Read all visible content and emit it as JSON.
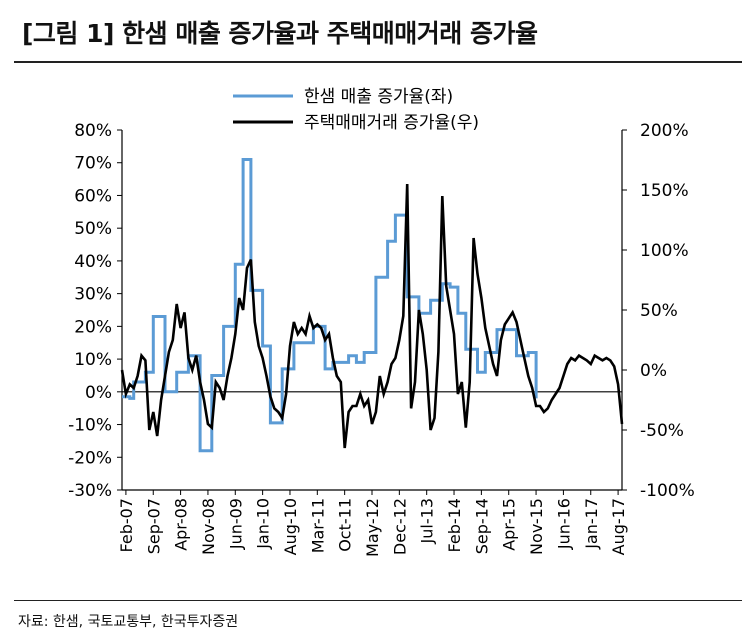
{
  "figure": {
    "title": "[그림 1] 한샘 매출 증가율과 주택매매거래 증가율",
    "source": "자료: 한샘, 국토교통부, 한국투자증권"
  },
  "chart_data": {
    "type": "line",
    "title": "[그림 1] 한샘 매출 증가율과 주택매매거래 증가율",
    "legend_position": "top-center",
    "grid": false,
    "x_tick_labels": [
      "Feb-07",
      "Sep-07",
      "Apr-08",
      "Nov-08",
      "Jun-09",
      "Jan-10",
      "Aug-10",
      "Mar-11",
      "Oct-11",
      "May-12",
      "Dec-12",
      "Jul-13",
      "Feb-14",
      "Sep-14",
      "Apr-15",
      "Nov-15",
      "Jun-16",
      "Jan-17",
      "Aug-17"
    ],
    "y_left": {
      "min": -30,
      "max": 80,
      "step": 10,
      "unit": "%",
      "tick_labels": [
        "-30%",
        "-20%",
        "-10%",
        "0%",
        "10%",
        "20%",
        "30%",
        "40%",
        "50%",
        "60%",
        "70%",
        "80%"
      ]
    },
    "y_right": {
      "min": -100,
      "max": 200,
      "step": 50,
      "unit": "%",
      "tick_labels": [
        "-100%",
        "-50%",
        "0%",
        "50%",
        "100%",
        "150%",
        "200%"
      ]
    },
    "series": [
      {
        "name": "한샘 매출 증가율(좌)",
        "axis": "left",
        "color": "#5b9bd5",
        "step": true,
        "points": [
          [
            "Jan-07",
            -1.5
          ],
          [
            "Mar-07",
            -2
          ],
          [
            "Apr-07",
            3
          ],
          [
            "Jun-07",
            3
          ],
          [
            "Jul-07",
            6
          ],
          [
            "Aug-07",
            6
          ],
          [
            "Sep-07",
            23
          ],
          [
            "Nov-07",
            23
          ],
          [
            "Dec-07",
            0
          ],
          [
            "Feb-08",
            0
          ],
          [
            "Mar-08",
            6
          ],
          [
            "May-08",
            6
          ],
          [
            "Jun-08",
            11
          ],
          [
            "Aug-08",
            11
          ],
          [
            "Sep-08",
            -18
          ],
          [
            "Nov-08",
            -18
          ],
          [
            "Dec-08",
            5
          ],
          [
            "Feb-09",
            5
          ],
          [
            "Mar-09",
            20
          ],
          [
            "May-09",
            20
          ],
          [
            "Jun-09",
            39
          ],
          [
            "Jul-09",
            39
          ],
          [
            "Aug-09",
            71
          ],
          [
            "Sep-09",
            71
          ],
          [
            "Oct-09",
            31
          ],
          [
            "Dec-09",
            31
          ],
          [
            "Jan-10",
            14
          ],
          [
            "Feb-10",
            14
          ],
          [
            "Mar-10",
            -9.5
          ],
          [
            "May-10",
            -9.5
          ],
          [
            "Jun-10",
            7
          ],
          [
            "Aug-10",
            7
          ],
          [
            "Sep-10",
            15
          ],
          [
            "Jan-11",
            15
          ],
          [
            "Feb-11",
            20
          ],
          [
            "Apr-11",
            20
          ],
          [
            "May-11",
            7
          ],
          [
            "Jun-11",
            7
          ],
          [
            "Jul-11",
            9
          ],
          [
            "Oct-11",
            9
          ],
          [
            "Nov-11",
            11
          ],
          [
            "Dec-11",
            11
          ],
          [
            "Jan-12",
            9
          ],
          [
            "Feb-12",
            9
          ],
          [
            "Mar-12",
            12
          ],
          [
            "May-12",
            12
          ],
          [
            "Jun-12",
            35
          ],
          [
            "Aug-12",
            35
          ],
          [
            "Sep-12",
            46
          ],
          [
            "Oct-12",
            46
          ],
          [
            "Nov-12",
            54
          ],
          [
            "Jan-13",
            54
          ],
          [
            "Feb-13",
            29
          ],
          [
            "Apr-13",
            29
          ],
          [
            "May-13",
            24
          ],
          [
            "Jul-13",
            24
          ],
          [
            "Aug-13",
            28
          ],
          [
            "Oct-13",
            28
          ],
          [
            "Nov-13",
            33
          ],
          [
            "Dec-13",
            33
          ],
          [
            "Jan-14",
            32
          ],
          [
            "Feb-14",
            32
          ],
          [
            "Mar-14",
            24
          ],
          [
            "Apr-14",
            24
          ],
          [
            "May-14",
            13
          ],
          [
            "Jul-14",
            13
          ],
          [
            "Aug-14",
            6
          ],
          [
            "Sep-14",
            6
          ],
          [
            "Oct-14",
            12
          ],
          [
            "Dec-14",
            12
          ],
          [
            "Jan-15",
            19
          ],
          [
            "Mar-15",
            19
          ],
          [
            "Apr-15",
            19
          ],
          [
            "May-15",
            19
          ],
          [
            "Jun-15",
            11
          ],
          [
            "Sep-15",
            12
          ],
          [
            "Oct-15",
            12
          ],
          [
            "Nov-15",
            -2
          ]
        ]
      },
      {
        "name": "주택매매거래 증가율(우)",
        "axis": "right",
        "color": "#000000",
        "step": false,
        "points": [
          [
            "Jan-07",
            0
          ],
          [
            "Feb-07",
            -20
          ],
          [
            "Mar-07",
            -12
          ],
          [
            "Apr-07",
            -15
          ],
          [
            "May-07",
            -5
          ],
          [
            "Jun-07",
            12
          ],
          [
            "Jul-07",
            8
          ],
          [
            "Aug-07",
            -50
          ],
          [
            "Sep-07",
            -35
          ],
          [
            "Oct-07",
            -55
          ],
          [
            "Nov-07",
            -25
          ],
          [
            "Dec-07",
            -5
          ],
          [
            "Jan-08",
            15
          ],
          [
            "Feb-08",
            25
          ],
          [
            "Mar-08",
            55
          ],
          [
            "Apr-08",
            35
          ],
          [
            "May-08",
            48
          ],
          [
            "Jun-08",
            10
          ],
          [
            "Jul-08",
            0
          ],
          [
            "Aug-08",
            12
          ],
          [
            "Sep-08",
            -10
          ],
          [
            "Oct-08",
            -25
          ],
          [
            "Nov-08",
            -45
          ],
          [
            "Dec-08",
            -48
          ],
          [
            "Jan-09",
            -10
          ],
          [
            "Feb-09",
            -15
          ],
          [
            "Mar-09",
            -25
          ],
          [
            "Apr-09",
            -5
          ],
          [
            "May-09",
            10
          ],
          [
            "Jun-09",
            30
          ],
          [
            "Jul-09",
            60
          ],
          [
            "Aug-09",
            50
          ],
          [
            "Sep-09",
            85
          ],
          [
            "Oct-09",
            92
          ],
          [
            "Nov-09",
            40
          ],
          [
            "Dec-09",
            20
          ],
          [
            "Jan-10",
            10
          ],
          [
            "Feb-10",
            -5
          ],
          [
            "Mar-10",
            -22
          ],
          [
            "Apr-10",
            -32
          ],
          [
            "May-10",
            -35
          ],
          [
            "Jun-10",
            -40
          ],
          [
            "Jul-10",
            -20
          ],
          [
            "Aug-10",
            20
          ],
          [
            "Sep-10",
            40
          ],
          [
            "Oct-10",
            30
          ],
          [
            "Nov-10",
            35
          ],
          [
            "Dec-10",
            30
          ],
          [
            "Jan-11",
            45
          ],
          [
            "Feb-11",
            35
          ],
          [
            "Mar-11",
            38
          ],
          [
            "Apr-11",
            35
          ],
          [
            "May-11",
            25
          ],
          [
            "Jun-11",
            30
          ],
          [
            "Jul-11",
            10
          ],
          [
            "Aug-11",
            -5
          ],
          [
            "Sep-11",
            -10
          ],
          [
            "Oct-11",
            -65
          ],
          [
            "Nov-11",
            -35
          ],
          [
            "Dec-11",
            -30
          ],
          [
            "Jan-12",
            -30
          ],
          [
            "Feb-12",
            -20
          ],
          [
            "Mar-12",
            -30
          ],
          [
            "Apr-12",
            -25
          ],
          [
            "May-12",
            -45
          ],
          [
            "Jun-12",
            -35
          ],
          [
            "Jul-12",
            -5
          ],
          [
            "Aug-12",
            -20
          ],
          [
            "Sep-12",
            -10
          ],
          [
            "Oct-12",
            5
          ],
          [
            "Nov-12",
            10
          ],
          [
            "Dec-12",
            25
          ],
          [
            "Jan-13",
            45
          ],
          [
            "Feb-13",
            155
          ],
          [
            "Mar-13",
            -32
          ],
          [
            "Apr-13",
            -10
          ],
          [
            "May-13",
            50
          ],
          [
            "Jun-13",
            30
          ],
          [
            "Jul-13",
            0
          ],
          [
            "Aug-13",
            -50
          ],
          [
            "Sep-13",
            -40
          ],
          [
            "Oct-13",
            15
          ],
          [
            "Nov-13",
            145
          ],
          [
            "Dec-13",
            70
          ],
          [
            "Jan-14",
            50
          ],
          [
            "Feb-14",
            30
          ],
          [
            "Mar-14",
            -20
          ],
          [
            "Apr-14",
            -10
          ],
          [
            "May-14",
            -48
          ],
          [
            "Jun-14",
            -10
          ],
          [
            "Jul-14",
            110
          ],
          [
            "Aug-14",
            80
          ],
          [
            "Sep-14",
            60
          ],
          [
            "Oct-14",
            35
          ],
          [
            "Nov-14",
            20
          ],
          [
            "Dec-14",
            5
          ],
          [
            "Jan-15",
            -5
          ],
          [
            "Feb-15",
            25
          ],
          [
            "Mar-15",
            38
          ],
          [
            "Apr-15",
            43
          ],
          [
            "May-15",
            48
          ],
          [
            "Jun-15",
            40
          ],
          [
            "Jul-15",
            25
          ],
          [
            "Aug-15",
            10
          ],
          [
            "Sep-15",
            -5
          ],
          [
            "Oct-15",
            -15
          ],
          [
            "Nov-15",
            -30
          ],
          [
            "Dec-15",
            -30
          ],
          [
            "Jan-16",
            -35
          ],
          [
            "Feb-16",
            -32
          ],
          [
            "Mar-16",
            -25
          ],
          [
            "Apr-16",
            -20
          ],
          [
            "May-16",
            -15
          ],
          [
            "Jun-16",
            -5
          ],
          [
            "Jul-16",
            5
          ],
          [
            "Aug-16",
            10
          ],
          [
            "Sep-16",
            8
          ],
          [
            "Oct-16",
            12
          ],
          [
            "Nov-16",
            10
          ],
          [
            "Dec-16",
            8
          ],
          [
            "Jan-17",
            5
          ],
          [
            "Feb-17",
            12
          ],
          [
            "Mar-17",
            10
          ],
          [
            "Apr-17",
            8
          ],
          [
            "May-17",
            10
          ],
          [
            "Jun-17",
            8
          ],
          [
            "Jul-17",
            3
          ],
          [
            "Aug-17",
            -12
          ],
          [
            "Sep-17",
            -45
          ]
        ]
      }
    ]
  }
}
